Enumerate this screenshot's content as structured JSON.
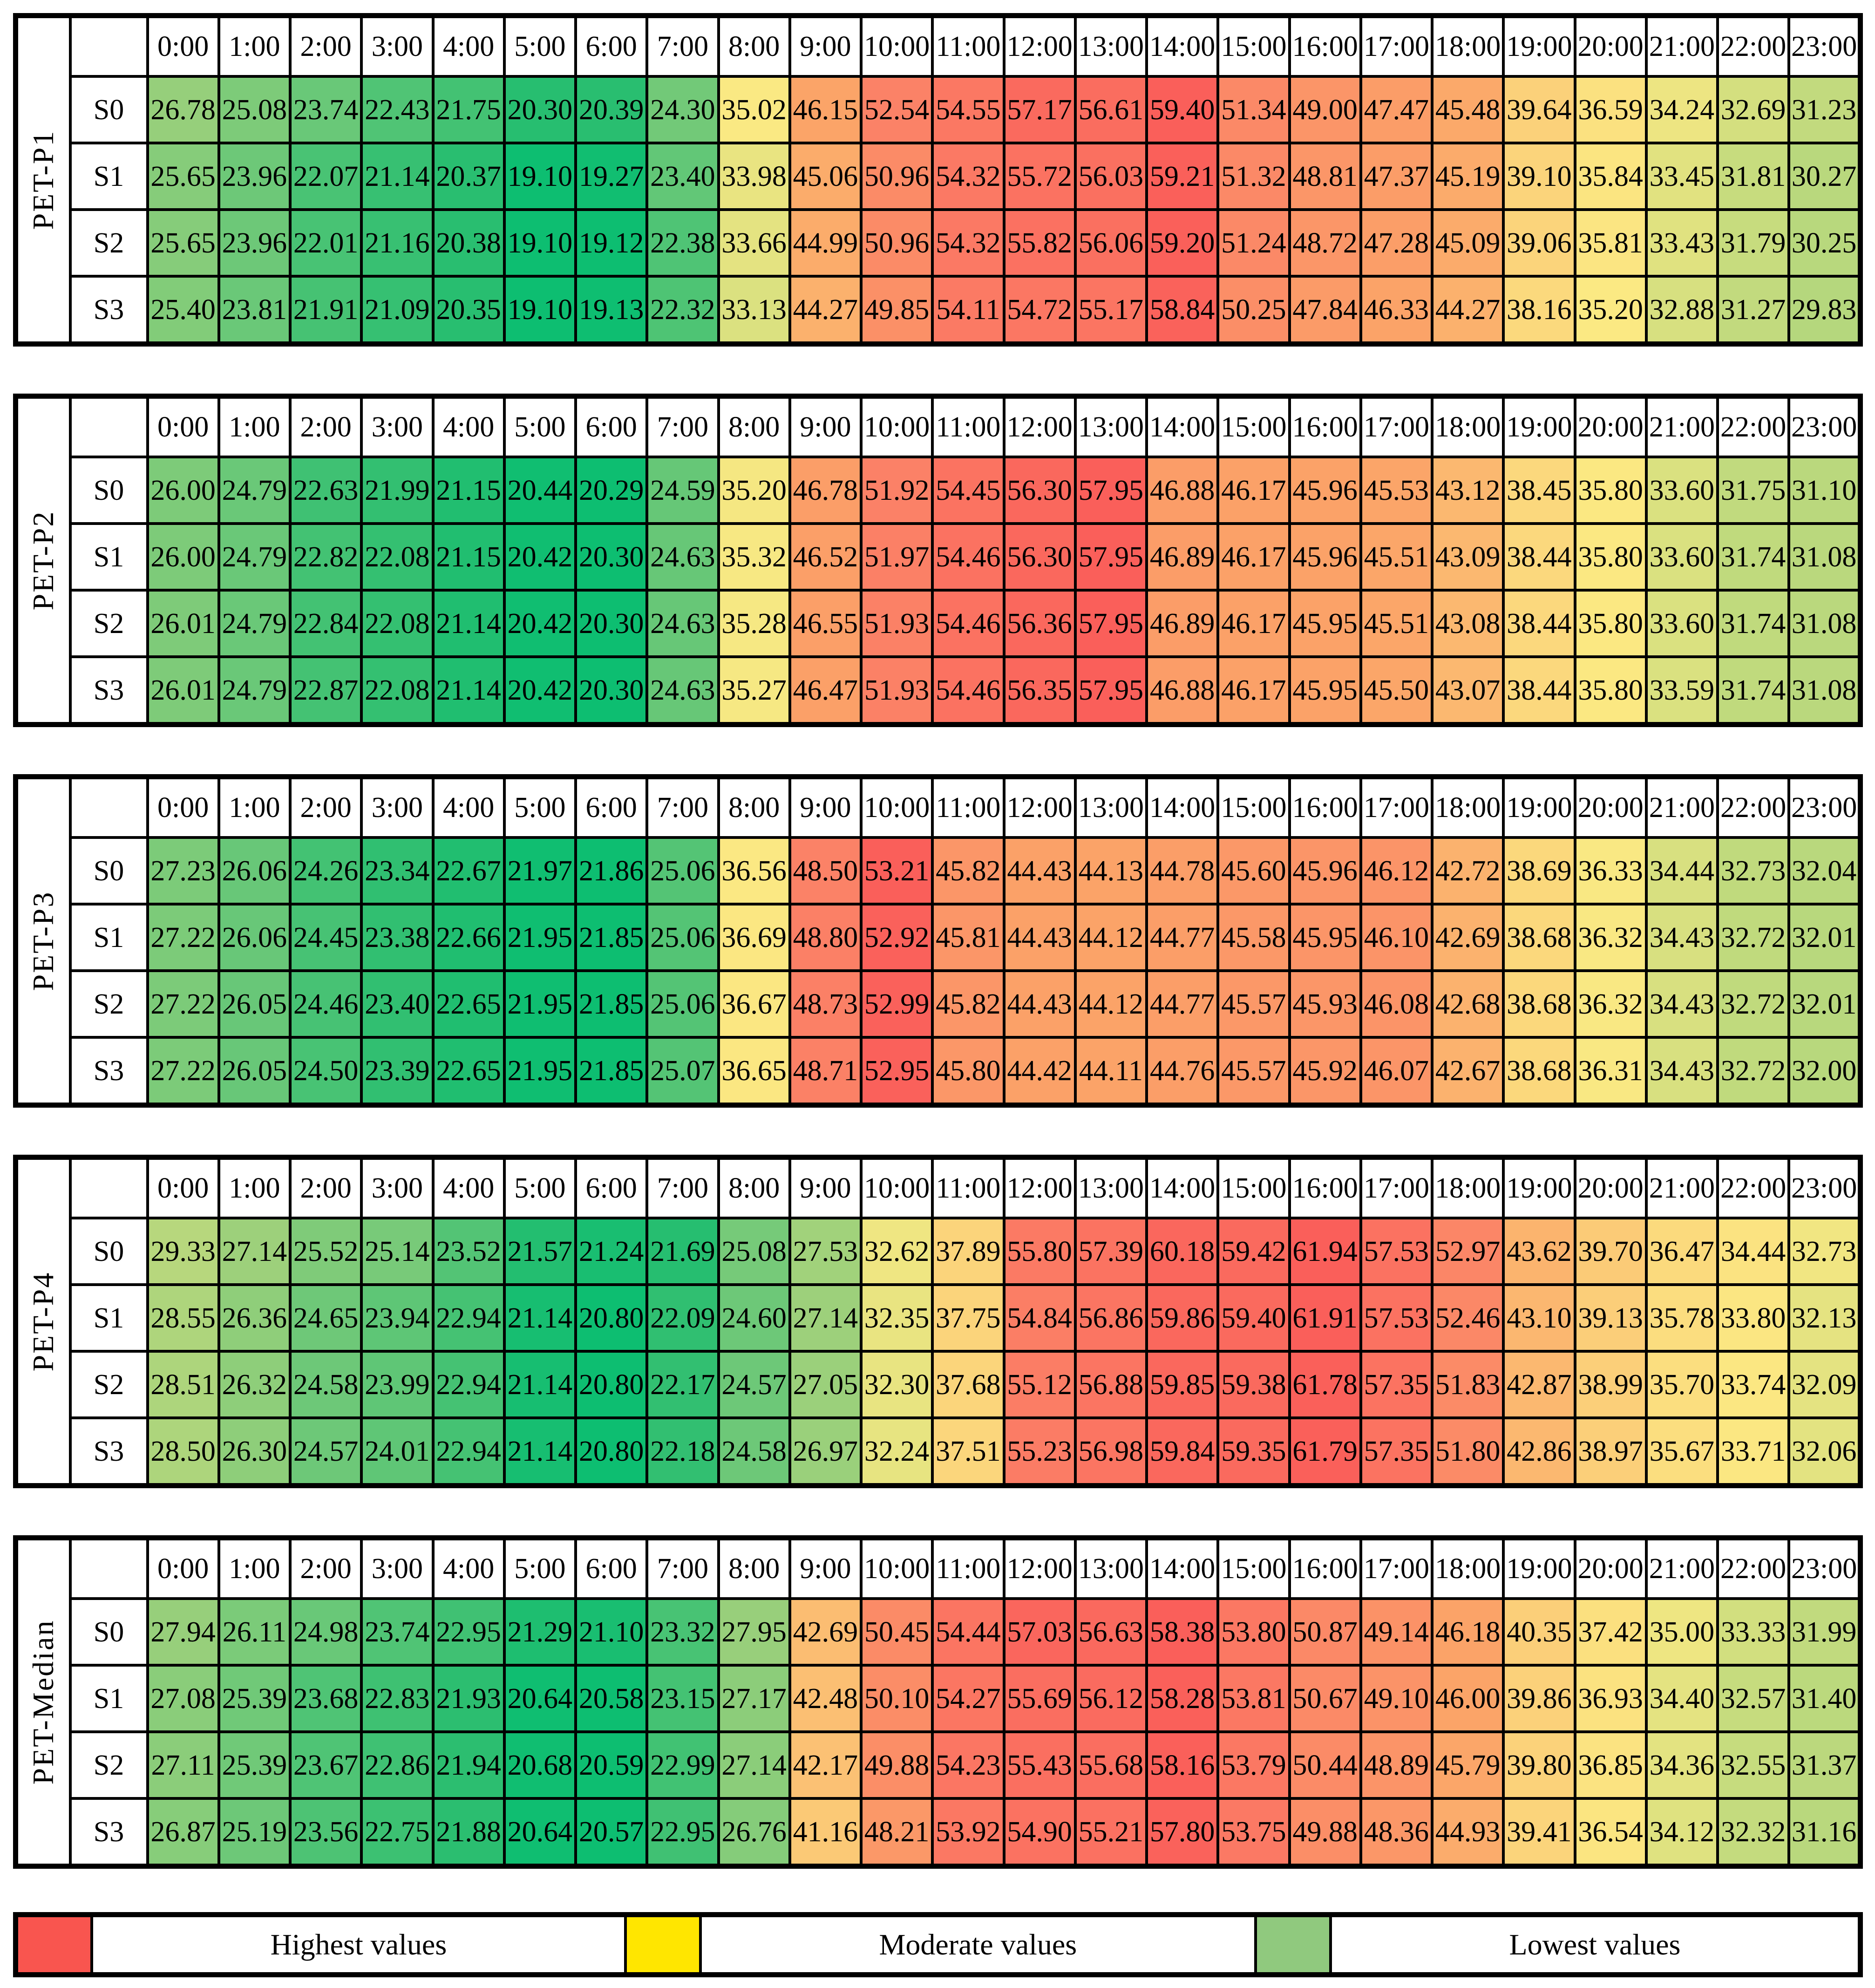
{
  "chart_data": {
    "type": "heatmap",
    "x": [
      "0:00",
      "1:00",
      "2:00",
      "3:00",
      "4:00",
      "5:00",
      "6:00",
      "7:00",
      "8:00",
      "9:00",
      "10:00",
      "11:00",
      "12:00",
      "13:00",
      "14:00",
      "15:00",
      "16:00",
      "17:00",
      "18:00",
      "19:00",
      "20:00",
      "21:00",
      "22:00",
      "23:00"
    ],
    "value_format": "2-decimals",
    "scale_note": "per-table 3-color scale: min=green, 50th percentile=yellow, max=red",
    "color_scale": {
      "stops": [
        [
          0.0,
          "#0DBE71"
        ],
        [
          0.04,
          "#29BE70"
        ],
        [
          0.15,
          "#6CC878"
        ],
        [
          0.25,
          "#9BD07B"
        ],
        [
          0.4,
          "#C8DC7E"
        ],
        [
          0.5,
          "#FBE983"
        ],
        [
          0.6,
          "#FBCF79"
        ],
        [
          0.73,
          "#FBA368"
        ],
        [
          0.86,
          "#FB8267"
        ],
        [
          1.0,
          "#FA5F5A"
        ]
      ]
    },
    "tables": [
      {
        "label": "PET-P1",
        "rows": [
          {
            "label": "S0",
            "values": [
              26.78,
              25.08,
              23.74,
              22.43,
              21.75,
              20.3,
              20.39,
              24.3,
              35.02,
              46.15,
              52.54,
              54.55,
              57.17,
              56.61,
              59.4,
              51.34,
              49.0,
              47.47,
              45.48,
              39.64,
              36.59,
              34.24,
              32.69,
              31.23
            ]
          },
          {
            "label": "S1",
            "values": [
              25.65,
              23.96,
              22.07,
              21.14,
              20.37,
              19.1,
              19.27,
              23.4,
              33.98,
              45.06,
              50.96,
              54.32,
              55.72,
              56.03,
              59.21,
              51.32,
              48.81,
              47.37,
              45.19,
              39.1,
              35.84,
              33.45,
              31.81,
              30.27
            ]
          },
          {
            "label": "S2",
            "values": [
              25.65,
              23.96,
              22.01,
              21.16,
              20.38,
              19.1,
              19.12,
              22.38,
              33.66,
              44.99,
              50.96,
              54.32,
              55.82,
              56.06,
              59.2,
              51.24,
              48.72,
              47.28,
              45.09,
              39.06,
              35.81,
              33.43,
              31.79,
              30.25
            ]
          },
          {
            "label": "S3",
            "values": [
              25.4,
              23.81,
              21.91,
              21.09,
              20.35,
              19.1,
              19.13,
              22.32,
              33.13,
              44.27,
              49.85,
              54.11,
              54.72,
              55.17,
              58.84,
              50.25,
              47.84,
              46.33,
              44.27,
              38.16,
              35.2,
              32.88,
              31.27,
              29.83
            ]
          }
        ]
      },
      {
        "label": "PET-P2",
        "rows": [
          {
            "label": "S0",
            "values": [
              26.0,
              24.79,
              22.63,
              21.99,
              21.15,
              20.44,
              20.29,
              24.59,
              35.2,
              46.78,
              51.92,
              54.45,
              56.3,
              57.95,
              46.88,
              46.17,
              45.96,
              45.53,
              43.12,
              38.45,
              35.8,
              33.6,
              31.75,
              31.1
            ]
          },
          {
            "label": "S1",
            "values": [
              26.0,
              24.79,
              22.82,
              22.08,
              21.15,
              20.42,
              20.3,
              24.63,
              35.32,
              46.52,
              51.97,
              54.46,
              56.3,
              57.95,
              46.89,
              46.17,
              45.96,
              45.51,
              43.09,
              38.44,
              35.8,
              33.6,
              31.74,
              31.08
            ]
          },
          {
            "label": "S2",
            "values": [
              26.01,
              24.79,
              22.84,
              22.08,
              21.14,
              20.42,
              20.3,
              24.63,
              35.28,
              46.55,
              51.93,
              54.46,
              56.36,
              57.95,
              46.89,
              46.17,
              45.95,
              45.51,
              43.08,
              38.44,
              35.8,
              33.6,
              31.74,
              31.08
            ]
          },
          {
            "label": "S3",
            "values": [
              26.01,
              24.79,
              22.87,
              22.08,
              21.14,
              20.42,
              20.3,
              24.63,
              35.27,
              46.47,
              51.93,
              54.46,
              56.35,
              57.95,
              46.88,
              46.17,
              45.95,
              45.5,
              43.07,
              38.44,
              35.8,
              33.59,
              31.74,
              31.08
            ]
          }
        ]
      },
      {
        "label": "PET-P3",
        "rows": [
          {
            "label": "S0",
            "values": [
              27.23,
              26.06,
              24.26,
              23.34,
              22.67,
              21.97,
              21.86,
              25.06,
              36.56,
              48.5,
              53.21,
              45.82,
              44.43,
              44.13,
              44.78,
              45.6,
              45.96,
              46.12,
              42.72,
              38.69,
              36.33,
              34.44,
              32.73,
              32.04
            ]
          },
          {
            "label": "S1",
            "values": [
              27.22,
              26.06,
              24.45,
              23.38,
              22.66,
              21.95,
              21.85,
              25.06,
              36.69,
              48.8,
              52.92,
              45.81,
              44.43,
              44.12,
              44.77,
              45.58,
              45.95,
              46.1,
              42.69,
              38.68,
              36.32,
              34.43,
              32.72,
              32.01
            ]
          },
          {
            "label": "S2",
            "values": [
              27.22,
              26.05,
              24.46,
              23.4,
              22.65,
              21.95,
              21.85,
              25.06,
              36.67,
              48.73,
              52.99,
              45.82,
              44.43,
              44.12,
              44.77,
              45.57,
              45.93,
              46.08,
              42.68,
              38.68,
              36.32,
              34.43,
              32.72,
              32.01
            ]
          },
          {
            "label": "S3",
            "values": [
              27.22,
              26.05,
              24.5,
              23.39,
              22.65,
              21.95,
              21.85,
              25.07,
              36.65,
              48.71,
              52.95,
              45.8,
              44.42,
              44.11,
              44.76,
              45.57,
              45.92,
              46.07,
              42.67,
              38.68,
              36.31,
              34.43,
              32.72,
              32.0
            ]
          }
        ]
      },
      {
        "label": "PET-P4",
        "rows": [
          {
            "label": "S0",
            "values": [
              29.33,
              27.14,
              25.52,
              25.14,
              23.52,
              21.57,
              21.24,
              21.69,
              25.08,
              27.53,
              32.62,
              37.89,
              55.8,
              57.39,
              60.18,
              59.42,
              61.94,
              57.53,
              52.97,
              43.62,
              39.7,
              36.47,
              34.44,
              32.73
            ]
          },
          {
            "label": "S1",
            "values": [
              28.55,
              26.36,
              24.65,
              23.94,
              22.94,
              21.14,
              20.8,
              22.09,
              24.6,
              27.14,
              32.35,
              37.75,
              54.84,
              56.86,
              59.86,
              59.4,
              61.91,
              57.53,
              52.46,
              43.1,
              39.13,
              35.78,
              33.8,
              32.13
            ]
          },
          {
            "label": "S2",
            "values": [
              28.51,
              26.32,
              24.58,
              23.99,
              22.94,
              21.14,
              20.8,
              22.17,
              24.57,
              27.05,
              32.3,
              37.68,
              55.12,
              56.88,
              59.85,
              59.38,
              61.78,
              57.35,
              51.83,
              42.87,
              38.99,
              35.7,
              33.74,
              32.09
            ]
          },
          {
            "label": "S3",
            "values": [
              28.5,
              26.3,
              24.57,
              24.01,
              22.94,
              21.14,
              20.8,
              22.18,
              24.58,
              26.97,
              32.24,
              37.51,
              55.23,
              56.98,
              59.84,
              59.35,
              61.79,
              57.35,
              51.8,
              42.86,
              38.97,
              35.67,
              33.71,
              32.06
            ]
          }
        ]
      },
      {
        "label": "PET-Median",
        "rows": [
          {
            "label": "S0",
            "values": [
              27.94,
              26.11,
              24.98,
              23.74,
              22.95,
              21.29,
              21.1,
              23.32,
              27.95,
              42.69,
              50.45,
              54.44,
              57.03,
              56.63,
              58.38,
              53.8,
              50.87,
              49.14,
              46.18,
              40.35,
              37.42,
              35.0,
              33.33,
              31.99
            ]
          },
          {
            "label": "S1",
            "values": [
              27.08,
              25.39,
              23.68,
              22.83,
              21.93,
              20.64,
              20.58,
              23.15,
              27.17,
              42.48,
              50.1,
              54.27,
              55.69,
              56.12,
              58.28,
              53.81,
              50.67,
              49.1,
              46.0,
              39.86,
              36.93,
              34.4,
              32.57,
              31.4
            ]
          },
          {
            "label": "S2",
            "values": [
              27.11,
              25.39,
              23.67,
              22.86,
              21.94,
              20.68,
              20.59,
              22.99,
              27.14,
              42.17,
              49.88,
              54.23,
              55.43,
              55.68,
              58.16,
              53.79,
              50.44,
              48.89,
              45.79,
              39.8,
              36.85,
              34.36,
              32.55,
              31.37
            ]
          },
          {
            "label": "S3",
            "values": [
              26.87,
              25.19,
              23.56,
              22.75,
              21.88,
              20.64,
              20.57,
              22.95,
              26.76,
              41.16,
              48.21,
              53.92,
              54.9,
              55.21,
              57.8,
              53.75,
              49.88,
              48.36,
              44.93,
              39.41,
              36.54,
              34.12,
              32.32,
              31.16
            ]
          }
        ]
      }
    ]
  },
  "layout": {
    "table_tops": [
      28,
      845,
      1662,
      2479,
      3296
    ]
  },
  "legend": {
    "items": [
      {
        "label": "Highest values",
        "color": "#F9554F"
      },
      {
        "label": "Moderate values",
        "color": "#FFE600"
      },
      {
        "label": "Lowest values",
        "color": "#90C97E"
      }
    ]
  }
}
